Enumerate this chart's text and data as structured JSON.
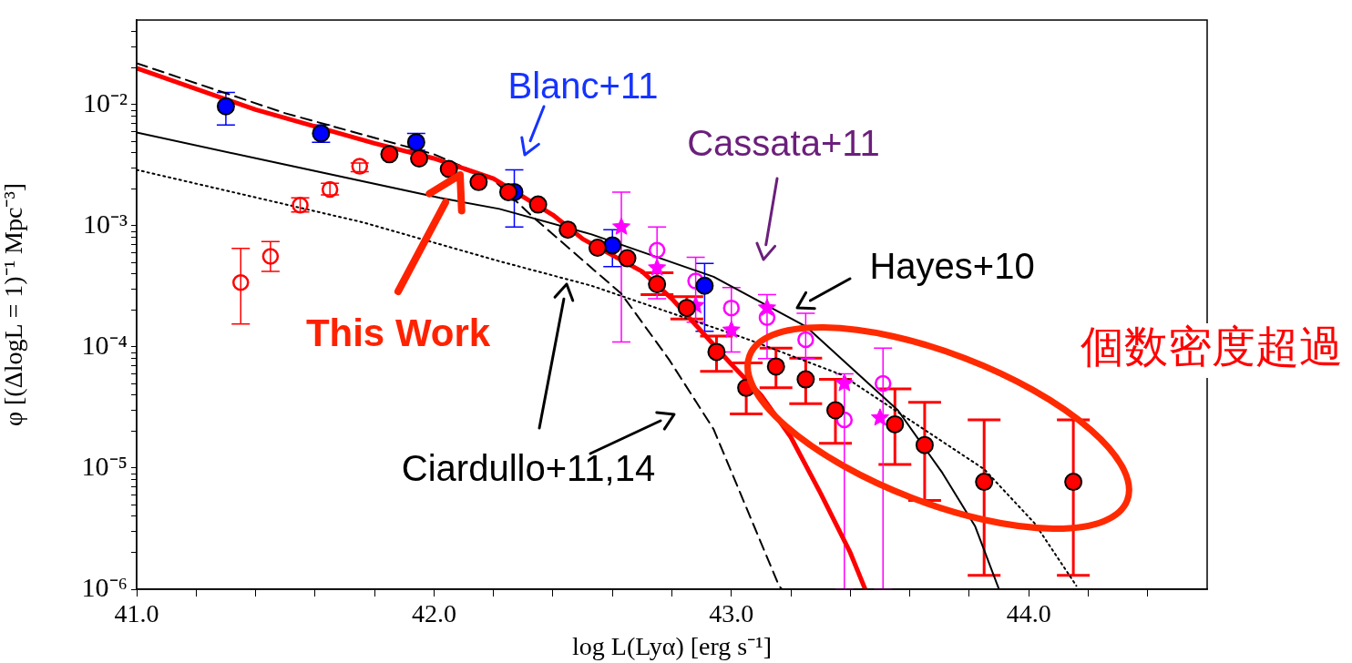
{
  "chart_data": {
    "type": "scatter",
    "xlabel": "log L(Lyα) [erg s⁻¹]",
    "ylabel": "φ [(ΔlogL = 1)⁻¹ Mpc⁻³]",
    "xlim": [
      41,
      44.6
    ],
    "ylim": [
      1e-06,
      0.05
    ],
    "log": "y",
    "grid": false,
    "legend": false,
    "xticks": [
      {
        "value": 41,
        "label": "41.0"
      },
      {
        "value": 41.2,
        "label": null
      },
      {
        "value": 41.4,
        "label": null
      },
      {
        "value": 41.6,
        "label": null
      },
      {
        "value": 41.8,
        "label": null
      },
      {
        "value": 42,
        "label": "42.0"
      },
      {
        "value": 42.2,
        "label": null
      },
      {
        "value": 42.4,
        "label": null
      },
      {
        "value": 42.6,
        "label": null
      },
      {
        "value": 42.8,
        "label": null
      },
      {
        "value": 43,
        "label": "43.0"
      },
      {
        "value": 43.2,
        "label": null
      },
      {
        "value": 43.4,
        "label": null
      },
      {
        "value": 43.6,
        "label": null
      },
      {
        "value": 43.8,
        "label": null
      },
      {
        "value": 44,
        "label": "44.0"
      },
      {
        "value": 44.2,
        "label": null
      },
      {
        "value": 44.4,
        "label": null
      }
    ],
    "yticks": [
      {
        "value": 1e-06,
        "label": "10⁻⁶"
      },
      {
        "value": 2e-06,
        "label": null
      },
      {
        "value": 3e-06,
        "label": null
      },
      {
        "value": 4e-06,
        "label": null
      },
      {
        "value": 5e-06,
        "label": null
      },
      {
        "value": 6e-06,
        "label": null
      },
      {
        "value": 7e-06,
        "label": null
      },
      {
        "value": 8e-06,
        "label": null
      },
      {
        "value": 9e-06,
        "label": null
      },
      {
        "value": 1e-05,
        "label": "10⁻⁵"
      },
      {
        "value": 2e-05,
        "label": null
      },
      {
        "value": 3e-05,
        "label": null
      },
      {
        "value": 4e-05,
        "label": null
      },
      {
        "value": 5e-05,
        "label": null
      },
      {
        "value": 6e-05,
        "label": null
      },
      {
        "value": 7e-05,
        "label": null
      },
      {
        "value": 8e-05,
        "label": null
      },
      {
        "value": 9e-05,
        "label": null
      },
      {
        "value": 0.0001,
        "label": "10⁻⁴"
      },
      {
        "value": 0.0002,
        "label": null
      },
      {
        "value": 0.0003,
        "label": null
      },
      {
        "value": 0.0004,
        "label": null
      },
      {
        "value": 0.0005,
        "label": null
      },
      {
        "value": 0.0006,
        "label": null
      },
      {
        "value": 0.0007,
        "label": null
      },
      {
        "value": 0.0008,
        "label": null
      },
      {
        "value": 0.0009,
        "label": null
      },
      {
        "value": 0.001,
        "label": "10⁻³"
      },
      {
        "value": 0.002,
        "label": null
      },
      {
        "value": 0.003,
        "label": null
      },
      {
        "value": 0.004,
        "label": null
      },
      {
        "value": 0.005,
        "label": null
      },
      {
        "value": 0.006,
        "label": null
      },
      {
        "value": 0.007,
        "label": null
      },
      {
        "value": 0.008,
        "label": null
      },
      {
        "value": 0.009,
        "label": null
      },
      {
        "value": 0.01,
        "label": "10⁻²"
      },
      {
        "value": 0.02,
        "label": null
      },
      {
        "value": 0.03,
        "label": null
      },
      {
        "value": 0.04,
        "label": null
      }
    ],
    "series": [
      {
        "type": "line",
        "color": "#ff0000",
        "line_style": "solid",
        "marker": "none",
        "x": [
          41.0,
          41.4,
          41.8,
          42.0,
          42.2,
          42.4,
          42.5,
          42.7,
          42.8,
          43.0,
          43.1,
          43.2,
          43.3,
          43.4,
          43.45
        ],
        "values": [
          0.02,
          0.0091,
          0.0048,
          0.0036,
          0.00245,
          0.00123,
          0.00078,
          0.00042,
          0.00025,
          7.2e-05,
          4e-05,
          1.8e-05,
          6.2e-06,
          2e-06,
          1e-06
        ]
      },
      {
        "type": "line",
        "color": "#000000",
        "line_style": "dashed",
        "marker": "none",
        "x": [
          41.0,
          41.5,
          42.0,
          42.2,
          42.33,
          42.63,
          42.79,
          42.94,
          43.16,
          43.17
        ],
        "values": [
          0.022,
          0.0085,
          0.0039,
          0.0024,
          0.0012,
          0.000275,
          7.9e-05,
          2.1e-05,
          1.07e-06,
          1e-06
        ]
      },
      {
        "type": "line",
        "color": "#000000",
        "line_style": "dotted",
        "marker": "none",
        "x": [
          41.0,
          41.76,
          42.22,
          42.53,
          43.05,
          43.37,
          43.85,
          44.02,
          44.16
        ],
        "values": [
          0.0029,
          0.00107,
          0.00051,
          0.00032,
          0.000117,
          5.9e-05,
          9.8e-06,
          3.5e-06,
          1.07e-06
        ]
      },
      {
        "type": "line",
        "color": "#000000",
        "line_style": "solid",
        "marker": "none",
        "x": [
          41.0,
          41.5,
          42.02,
          42.22,
          42.53,
          42.94,
          43.25,
          43.56,
          43.71,
          43.82,
          43.9
        ],
        "values": [
          0.0059,
          0.0032,
          0.0017,
          0.00138,
          0.00085,
          0.00038,
          0.000148,
          3e-05,
          9.1e-06,
          3.3e-06,
          1e-06
        ]
      },
      {
        "color": "#ff0000",
        "marker": "circle",
        "x": [
          41.85,
          41.95,
          42.05,
          42.15,
          42.25,
          42.35,
          42.45,
          42.55,
          42.65,
          42.75,
          42.85,
          42.95,
          43.05,
          43.15,
          43.25,
          43.35,
          43.55,
          43.65,
          43.85,
          44.15
        ],
        "values": [
          0.0039,
          0.0036,
          0.00295,
          0.0023,
          0.0019,
          0.0015,
          0.00093,
          0.00066,
          0.00054,
          0.00033,
          0.00021,
          9.1e-05,
          4.6e-05,
          6.9e-05,
          5.4e-05,
          3e-05,
          2.3e-05,
          1.55e-05,
          7.7e-06,
          7.7e-06
        ],
        "errors": [
          null,
          null,
          null,
          null,
          null,
          null,
          null,
          null,
          null,
          [
            0.00027,
            0.00041
          ],
          [
            0.00017,
            0.00026
          ],
          [
            6.3e-05,
            0.000123
          ],
          [
            2.8e-05,
            7.4e-05
          ],
          [
            4.6e-05,
            9.8e-05
          ],
          [
            3.4e-05,
            8.1e-05
          ],
          [
            1.6e-05,
            5.4e-05
          ],
          [
            1.07e-05,
            4.5e-05
          ],
          [
            5.4e-06,
            3.5e-05
          ],
          [
            1.3e-06,
            2.5e-05
          ],
          [
            1.3e-06,
            2.5e-05
          ]
        ]
      },
      {
        "color": "#ff0000",
        "marker": "circle-open",
        "x": [
          41.35,
          41.45,
          41.55,
          41.65,
          41.75
        ],
        "values": [
          0.00034,
          0.00056,
          0.00148,
          0.002,
          0.0031
        ],
        "errors": [
          [
            0.000155,
            0.00065
          ],
          [
            0.00042,
            0.00074
          ],
          [
            0.0013,
            0.0017
          ],
          [
            0.0018,
            0.00225
          ],
          [
            0.0028,
            0.0033
          ]
        ]
      },
      {
        "color": "#0000ff",
        "marker": "circle",
        "x": [
          41.3,
          41.62,
          41.94,
          42.27,
          42.6,
          42.91
        ],
        "values": [
          0.0097,
          0.0058,
          0.0049,
          0.0019,
          0.00069,
          0.00032
        ],
        "errors": [
          [
            0.0068,
            0.0126
          ],
          [
            0.0049,
            0.0068
          ],
          [
            0.0042,
            0.0058
          ],
          [
            0.00098,
            0.0029
          ],
          [
            0.00046,
            0.00093
          ],
          [
            0.000135,
            0.00049
          ]
        ]
      },
      {
        "color": "#ff00ff",
        "marker": "circle-open",
        "x": [
          42.75,
          42.88,
          43.0,
          43.12,
          43.25,
          43.38,
          43.51
        ],
        "values": [
          0.00063,
          0.00035,
          0.00021,
          0.000175,
          0.000115,
          2.5e-05,
          5e-05
        ],
        "errors": [
          [
            0.00025,
            0.00098
          ],
          [
            0.00016,
            0.00055
          ],
          [
            9.1e-05,
            0.00031
          ],
          [
            8e-05,
            0.00027
          ],
          [
            8e-05,
            0.00019
          ],
          [
            1e-06,
            6e-05
          ],
          [
            1e-06,
            9.8e-05
          ]
        ]
      },
      {
        "color": "#ff00ff",
        "marker": "star",
        "x": [
          42.63,
          42.75,
          42.88,
          43.0,
          43.12,
          43.38,
          43.5
        ],
        "values": [
          0.00098,
          0.00045,
          0.00022,
          0.000138,
          0.00021,
          5e-05,
          2.6e-05
        ],
        "errors": [
          [
            0.00011,
            0.0019
          ],
          null,
          null,
          null,
          null,
          null,
          null
        ]
      }
    ],
    "annotations": [
      "Blanc+11",
      "Cassata+11",
      "Hayes+10",
      "This Work",
      "Ciardullo+11,14",
      "個数密度超過"
    ]
  }
}
